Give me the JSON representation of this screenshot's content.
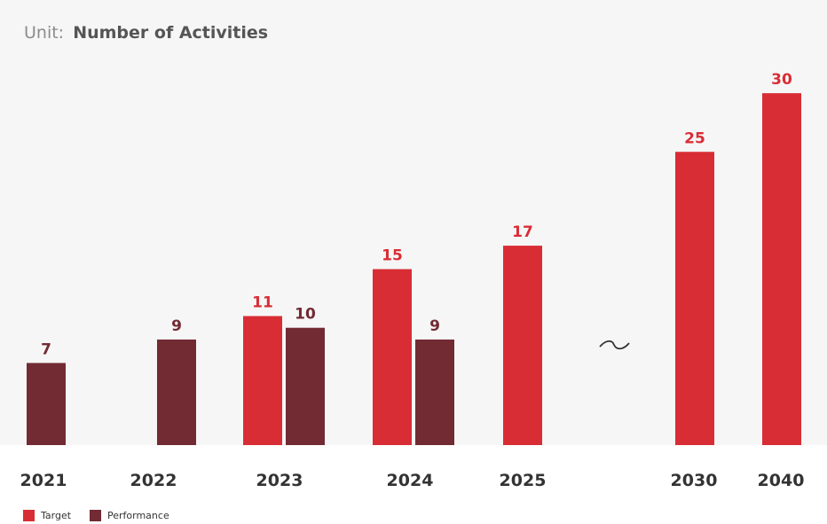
{
  "chart_data": {
    "type": "bar",
    "unit_prefix": "Unit:",
    "unit_label": "Number of Activities",
    "categories": [
      "2021",
      "2022",
      "2023",
      "2024",
      "2025",
      "2030",
      "2040"
    ],
    "series": [
      {
        "name": "Target",
        "color": "#d92d35",
        "values": [
          null,
          null,
          11,
          15,
          17,
          25,
          30
        ]
      },
      {
        "name": "Performance",
        "color": "#722a33",
        "values": [
          7,
          9,
          10,
          9,
          null,
          null,
          null
        ]
      }
    ],
    "axis_break": "~",
    "axis_break_after": "2025",
    "ylim": [
      0,
      30
    ],
    "legend_position": "bottom-left",
    "grid": false,
    "plot_background": "#f6f6f6"
  }
}
